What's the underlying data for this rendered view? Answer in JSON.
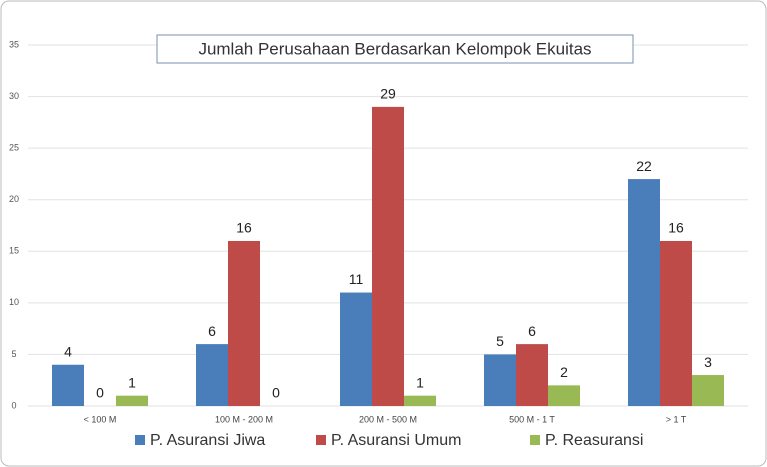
{
  "chart_data": {
    "type": "bar",
    "title": "Jumlah Perusahaan Berdasarkan Kelompok Ekuitas",
    "categories": [
      "< 100 M",
      "100 M - 200 M",
      "200 M - 500 M",
      "500 M - 1 T",
      "> 1 T"
    ],
    "series": [
      {
        "name": "P. Asuransi Jiwa",
        "color": "#4a7ebb",
        "values": [
          4,
          6,
          11,
          5,
          22
        ]
      },
      {
        "name": "P. Asuransi Umum",
        "color": "#be4b48",
        "values": [
          0,
          16,
          29,
          6,
          16
        ]
      },
      {
        "name": "P. Reasuransi",
        "color": "#98b954",
        "values": [
          1,
          0,
          1,
          2,
          3
        ]
      }
    ],
    "ylim": [
      0,
      35
    ],
    "yticks": [
      0,
      5,
      10,
      15,
      20,
      25,
      30,
      35
    ],
    "grid": true,
    "legend": "bottom"
  }
}
